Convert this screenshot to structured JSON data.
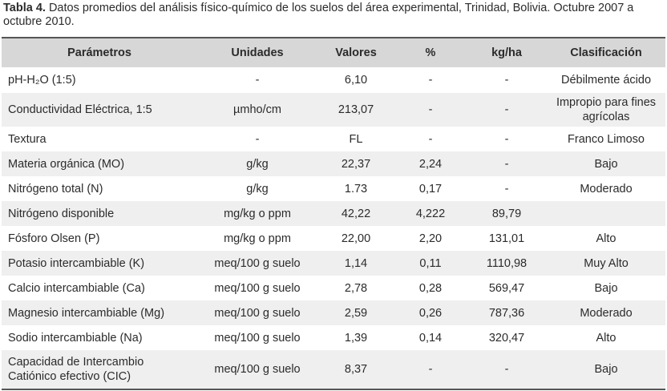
{
  "caption": {
    "label": "Tabla 4.",
    "text": "Datos promedios del análisis físico-químico de los suelos del área experimental, Trinidad, Bolivia. Octubre 2007 a octubre 2010."
  },
  "table": {
    "headers": [
      "Parámetros",
      "Unidades",
      "Valores",
      "%",
      "kg/ha",
      "Clasificación"
    ],
    "rows": [
      [
        "pH-H₂O (1:5)",
        "-",
        "6,10",
        "-",
        "-",
        "Débilmente ácido"
      ],
      [
        "Conductividad Eléctrica, 1:5",
        "µmho/cm",
        "213,07",
        "-",
        "-",
        "Impropio para fines agrícolas"
      ],
      [
        "Textura",
        "-",
        "FL",
        "-",
        "-",
        "Franco Limoso"
      ],
      [
        "Materia orgánica (MO)",
        "g/kg",
        "22,37",
        "2,24",
        "-",
        "Bajo"
      ],
      [
        "Nitrógeno total (N)",
        "g/kg",
        "1.73",
        "0,17",
        "-",
        "Moderado"
      ],
      [
        "Nitrógeno disponible",
        "mg/kg o ppm",
        "42,22",
        "4,222",
        "89,79",
        null
      ],
      [
        "Fósforo Olsen (P)",
        "mg/kg o ppm",
        "22,00",
        "2,20",
        "131,01",
        "Alto"
      ],
      [
        "Potasio intercambiable (K)",
        "meq/100 g suelo",
        "1,14",
        "0,11",
        "1110,98",
        "Muy Alto"
      ],
      [
        "Calcio intercambiable (Ca)",
        "meq/100 g suelo",
        "2,78",
        "0,28",
        "569,47",
        "Bajo"
      ],
      [
        "Magnesio intercambiable (Mg)",
        "meq/100 g suelo",
        "2,59",
        "0,26",
        "787,36",
        "Moderado"
      ],
      [
        "Sodio intercambiable (Na)",
        "meq/100 g suelo",
        "1,39",
        "0,14",
        "320,47",
        "Alto"
      ],
      [
        "Capacidad de Intercambio Catiónico efectivo (CIC)",
        "meq/100 g suelo",
        "8,37",
        "-",
        "-",
        "Bajo"
      ]
    ]
  }
}
